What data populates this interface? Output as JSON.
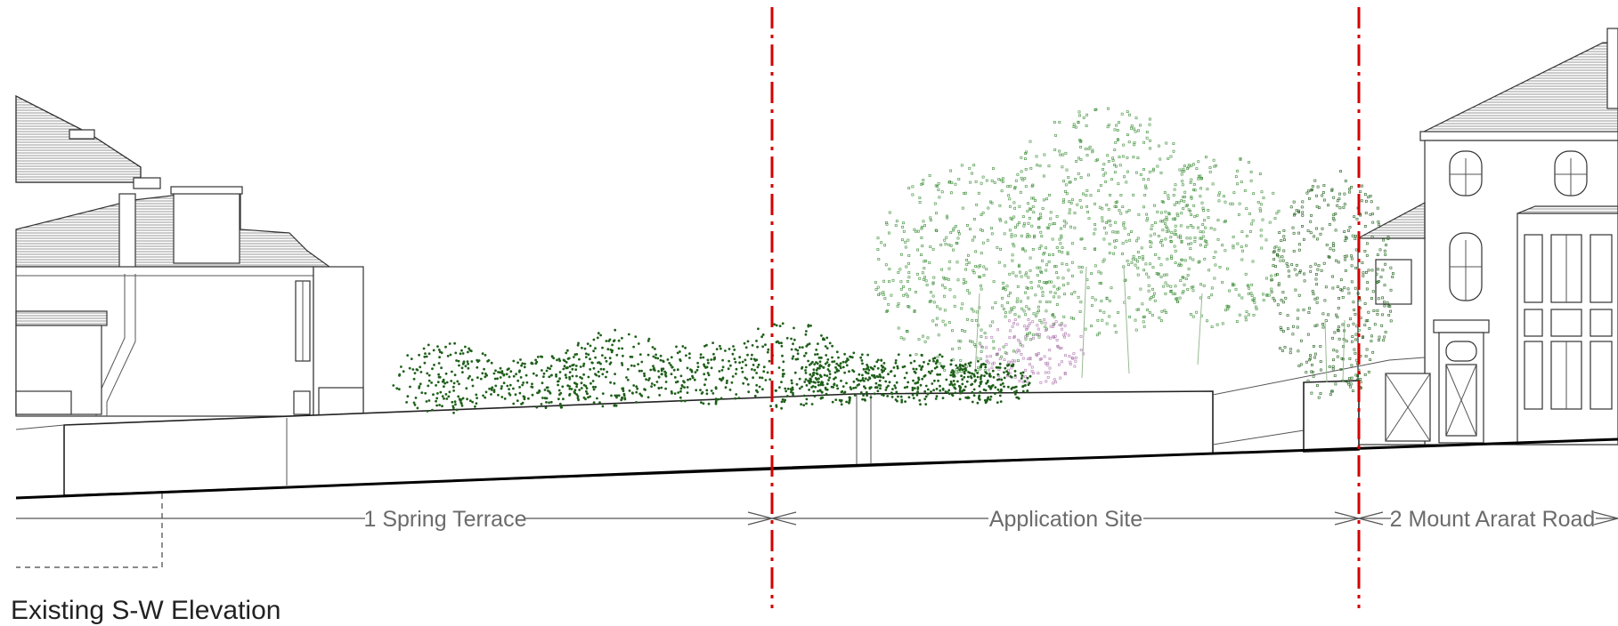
{
  "drawing": {
    "title": "Existing S-W Elevation",
    "sections": [
      {
        "label": "1 Spring Terrace"
      },
      {
        "label": "Application Site"
      },
      {
        "label": "2 Mount Ararat Road"
      }
    ]
  },
  "colors": {
    "boundary_line": "#d40000",
    "hedge": "#1f5f1a",
    "tree_canopy": "#3f8f3a",
    "blossom": "#b07ab0",
    "linework": "#333333",
    "label_text": "#6b6b6b"
  },
  "icons": {
    "dimension_arrow": "dimension-arrow-icon"
  }
}
